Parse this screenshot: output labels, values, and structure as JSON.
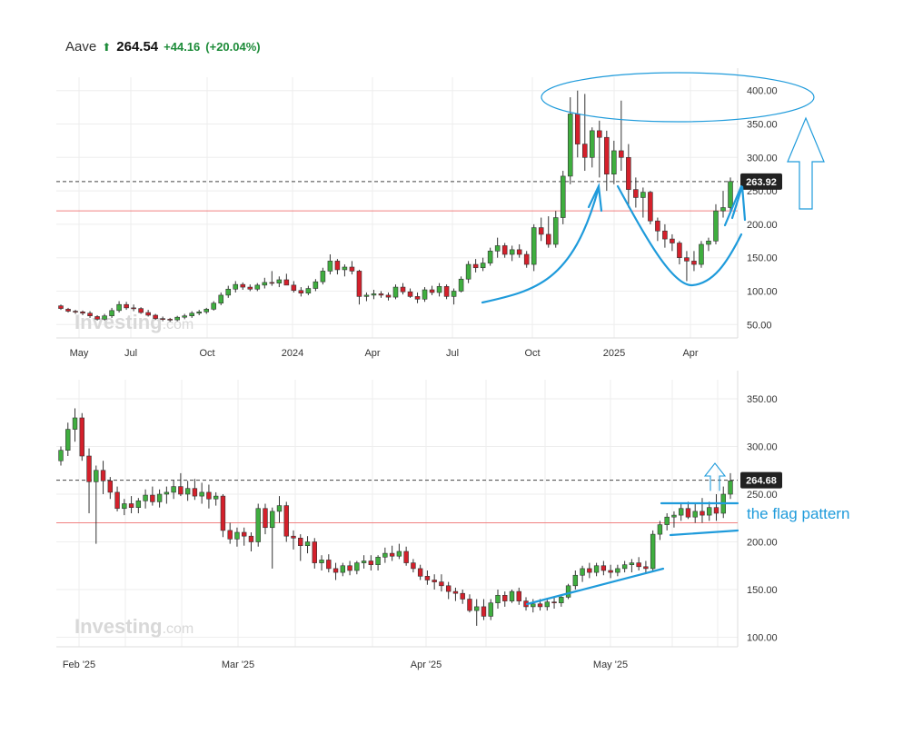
{
  "header": {
    "name": "Aave",
    "arrow_icon": "up-arrow-icon",
    "price": "264.54",
    "change": "+44.16",
    "change_pct": "(+20.04%)",
    "up_color": "#1e8c3a"
  },
  "colors": {
    "up_candle": "#3fae3f",
    "down_candle": "#d4202b",
    "annotation": "#1f9bdb",
    "support_line": "#f08080"
  },
  "chart_data": [
    {
      "type": "candlestick",
      "interval": "weekly",
      "watermark": "Investing.com",
      "xticks": [
        "May",
        "Jul",
        "Oct",
        "2024",
        "Apr",
        "Jul",
        "Oct",
        "2025",
        "Apr"
      ],
      "yticks": [
        "50.00",
        "100.00",
        "150.00",
        "200.00",
        "250.00",
        "300.00",
        "350.00",
        "400.00"
      ],
      "ylim": [
        30,
        420
      ],
      "last_price_label": "263.92",
      "last_price": 263.92,
      "horizontal_line": 220,
      "grid": true,
      "candles": [
        [
          78,
          80,
          72,
          74
        ],
        [
          73,
          75,
          68,
          70
        ],
        [
          70,
          72,
          66,
          69
        ],
        [
          69,
          71,
          64,
          67
        ],
        [
          67,
          70,
          60,
          63
        ],
        [
          62,
          64,
          56,
          58
        ],
        [
          58,
          66,
          56,
          63
        ],
        [
          63,
          75,
          60,
          71
        ],
        [
          71,
          85,
          68,
          80
        ],
        [
          80,
          84,
          72,
          75
        ],
        [
          75,
          80,
          70,
          74
        ],
        [
          74,
          76,
          66,
          68
        ],
        [
          68,
          72,
          62,
          64
        ],
        [
          64,
          66,
          57,
          59
        ],
        [
          59,
          62,
          55,
          58
        ],
        [
          58,
          60,
          54,
          57
        ],
        [
          57,
          63,
          55,
          61
        ],
        [
          61,
          66,
          58,
          63
        ],
        [
          63,
          70,
          60,
          67
        ],
        [
          67,
          72,
          64,
          69
        ],
        [
          69,
          75,
          66,
          73
        ],
        [
          73,
          85,
          71,
          82
        ],
        [
          82,
          98,
          79,
          94
        ],
        [
          94,
          108,
          90,
          103
        ],
        [
          103,
          115,
          98,
          110
        ],
        [
          110,
          113,
          102,
          106
        ],
        [
          106,
          110,
          100,
          103
        ],
        [
          103,
          112,
          100,
          109
        ],
        [
          109,
          120,
          104,
          113
        ],
        [
          113,
          130,
          108,
          112
        ],
        [
          112,
          122,
          106,
          117
        ],
        [
          117,
          126,
          110,
          109
        ],
        [
          109,
          115,
          98,
          101
        ],
        [
          101,
          106,
          92,
          97
        ],
        [
          97,
          108,
          94,
          104
        ],
        [
          104,
          118,
          100,
          114
        ],
        [
          114,
          135,
          110,
          130
        ],
        [
          130,
          155,
          125,
          145
        ],
        [
          145,
          148,
          125,
          132
        ],
        [
          132,
          140,
          122,
          136
        ],
        [
          136,
          145,
          125,
          130
        ],
        [
          130,
          132,
          80,
          92
        ],
        [
          92,
          98,
          85,
          94
        ],
        [
          94,
          102,
          88,
          96
        ],
        [
          96,
          100,
          90,
          94
        ],
        [
          94,
          98,
          86,
          91
        ],
        [
          91,
          110,
          88,
          106
        ],
        [
          106,
          112,
          95,
          99
        ],
        [
          99,
          104,
          90,
          92
        ],
        [
          92,
          98,
          82,
          88
        ],
        [
          88,
          106,
          84,
          102
        ],
        [
          102,
          108,
          94,
          98
        ],
        [
          98,
          112,
          92,
          107
        ],
        [
          107,
          110,
          88,
          92
        ],
        [
          92,
          104,
          80,
          100
        ],
        [
          100,
          122,
          98,
          118
        ],
        [
          118,
          145,
          112,
          140
        ],
        [
          140,
          148,
          128,
          135
        ],
        [
          135,
          150,
          130,
          142
        ],
        [
          142,
          165,
          138,
          160
        ],
        [
          160,
          180,
          150,
          168
        ],
        [
          168,
          172,
          150,
          155
        ],
        [
          155,
          168,
          145,
          162
        ],
        [
          162,
          170,
          150,
          155
        ],
        [
          155,
          160,
          135,
          140
        ],
        [
          140,
          200,
          130,
          195
        ],
        [
          195,
          210,
          175,
          185
        ],
        [
          185,
          212,
          165,
          170
        ],
        [
          170,
          220,
          165,
          210
        ],
        [
          210,
          280,
          200,
          272
        ],
        [
          272,
          390,
          260,
          365
        ],
        [
          365,
          400,
          300,
          320
        ],
        [
          320,
          395,
          280,
          300
        ],
        [
          300,
          345,
          285,
          340
        ],
        [
          340,
          355,
          270,
          330
        ],
        [
          330,
          340,
          250,
          275
        ],
        [
          275,
          325,
          260,
          310
        ],
        [
          310,
          385,
          280,
          300
        ],
        [
          300,
          320,
          225,
          252
        ],
        [
          252,
          270,
          225,
          240
        ],
        [
          240,
          255,
          210,
          248
        ],
        [
          248,
          250,
          200,
          205
        ],
        [
          205,
          210,
          175,
          190
        ],
        [
          190,
          200,
          165,
          178
        ],
        [
          178,
          185,
          160,
          172
        ],
        [
          172,
          175,
          140,
          150
        ],
        [
          150,
          160,
          115,
          145
        ],
        [
          145,
          160,
          130,
          140
        ],
        [
          140,
          175,
          135,
          170
        ],
        [
          170,
          180,
          160,
          175
        ],
        [
          175,
          230,
          170,
          220
        ],
        [
          220,
          250,
          210,
          225
        ],
        [
          225,
          270,
          220,
          264
        ]
      ],
      "annotations": [
        "oval-target-zone",
        "cup-curve",
        "rally-arrow-left",
        "rally-arrow-right",
        "target-up-arrow"
      ]
    },
    {
      "type": "candlestick",
      "interval": "daily",
      "watermark": "Investing.com",
      "xticks": [
        "Feb '25",
        "Mar '25",
        "Apr '25",
        "May '25"
      ],
      "yticks": [
        "100.00",
        "150.00",
        "200.00",
        "250.00",
        "300.00",
        "350.00"
      ],
      "ylim": [
        90,
        370
      ],
      "last_price_label": "264.68",
      "last_price": 264.68,
      "horizontal_line": 220,
      "grid": true,
      "annotation_text": "the flag pattern",
      "candles": [
        [
          285,
          300,
          280,
          296
        ],
        [
          296,
          325,
          290,
          318
        ],
        [
          318,
          340,
          305,
          330
        ],
        [
          330,
          335,
          285,
          290
        ],
        [
          290,
          298,
          230,
          263
        ],
        [
          263,
          280,
          198,
          275
        ],
        [
          275,
          285,
          250,
          264
        ],
        [
          264,
          268,
          245,
          252
        ],
        [
          252,
          258,
          232,
          235
        ],
        [
          235,
          245,
          228,
          240
        ],
        [
          240,
          248,
          230,
          236
        ],
        [
          236,
          246,
          230,
          243
        ],
        [
          243,
          255,
          235,
          249
        ],
        [
          249,
          258,
          238,
          242
        ],
        [
          242,
          255,
          236,
          250
        ],
        [
          250,
          258,
          240,
          252
        ],
        [
          252,
          265,
          245,
          258
        ],
        [
          258,
          272,
          248,
          250
        ],
        [
          250,
          264,
          243,
          256
        ],
        [
          256,
          266,
          244,
          248
        ],
        [
          248,
          262,
          240,
          252
        ],
        [
          252,
          260,
          235,
          245
        ],
        [
          245,
          252,
          238,
          248
        ],
        [
          248,
          250,
          205,
          212
        ],
        [
          212,
          220,
          198,
          203
        ],
        [
          203,
          215,
          195,
          210
        ],
        [
          210,
          215,
          196,
          206
        ],
        [
          206,
          210,
          190,
          200
        ],
        [
          200,
          240,
          195,
          235
        ],
        [
          235,
          240,
          208,
          215
        ],
        [
          215,
          236,
          172,
          232
        ],
        [
          232,
          248,
          220,
          238
        ],
        [
          238,
          242,
          200,
          206
        ],
        [
          206,
          212,
          192,
          204
        ],
        [
          204,
          208,
          180,
          196
        ],
        [
          196,
          206,
          188,
          200
        ],
        [
          200,
          204,
          172,
          178
        ],
        [
          178,
          186,
          170,
          181
        ],
        [
          181,
          187,
          168,
          172
        ],
        [
          172,
          178,
          160,
          168
        ],
        [
          168,
          178,
          164,
          175
        ],
        [
          175,
          180,
          165,
          170
        ],
        [
          170,
          180,
          166,
          178
        ],
        [
          178,
          186,
          172,
          180
        ],
        [
          180,
          186,
          170,
          176
        ],
        [
          176,
          186,
          170,
          184
        ],
        [
          184,
          194,
          178,
          188
        ],
        [
          188,
          196,
          180,
          185
        ],
        [
          185,
          198,
          182,
          190
        ],
        [
          190,
          195,
          175,
          178
        ],
        [
          178,
          182,
          168,
          172
        ],
        [
          172,
          176,
          160,
          164
        ],
        [
          164,
          170,
          155,
          160
        ],
        [
          160,
          166,
          150,
          158
        ],
        [
          158,
          166,
          148,
          154
        ],
        [
          154,
          158,
          140,
          148
        ],
        [
          148,
          152,
          138,
          146
        ],
        [
          146,
          150,
          135,
          140
        ],
        [
          140,
          145,
          126,
          128
        ],
        [
          128,
          140,
          112,
          132
        ],
        [
          132,
          140,
          118,
          122
        ],
        [
          122,
          140,
          118,
          136
        ],
        [
          136,
          150,
          130,
          144
        ],
        [
          144,
          148,
          132,
          138
        ],
        [
          138,
          150,
          136,
          148
        ],
        [
          148,
          152,
          134,
          138
        ],
        [
          138,
          142,
          128,
          132
        ],
        [
          132,
          140,
          126,
          135
        ],
        [
          135,
          140,
          128,
          132
        ],
        [
          132,
          140,
          128,
          137
        ],
        [
          137,
          142,
          130,
          136
        ],
        [
          136,
          145,
          132,
          142
        ],
        [
          142,
          156,
          140,
          154
        ],
        [
          154,
          170,
          150,
          165
        ],
        [
          165,
          175,
          158,
          172
        ],
        [
          172,
          178,
          162,
          168
        ],
        [
          168,
          178,
          164,
          175
        ],
        [
          175,
          180,
          165,
          170
        ],
        [
          170,
          176,
          162,
          168
        ],
        [
          168,
          176,
          164,
          172
        ],
        [
          172,
          180,
          168,
          176
        ],
        [
          176,
          182,
          168,
          178
        ],
        [
          178,
          184,
          170,
          174
        ],
        [
          174,
          180,
          168,
          172
        ],
        [
          172,
          212,
          170,
          208
        ],
        [
          208,
          222,
          202,
          218
        ],
        [
          218,
          230,
          212,
          226
        ],
        [
          226,
          232,
          215,
          228
        ],
        [
          228,
          240,
          222,
          235
        ],
        [
          235,
          242,
          224,
          226
        ],
        [
          226,
          240,
          220,
          232
        ],
        [
          232,
          246,
          220,
          228
        ],
        [
          228,
          242,
          222,
          236
        ],
        [
          236,
          250,
          222,
          230
        ],
        [
          230,
          258,
          225,
          250
        ],
        [
          250,
          272,
          245,
          264
        ]
      ],
      "annotations": [
        "flag-upper-line",
        "flag-lower-line",
        "trend-line",
        "breakout-line",
        "target-up-arrow"
      ]
    }
  ]
}
